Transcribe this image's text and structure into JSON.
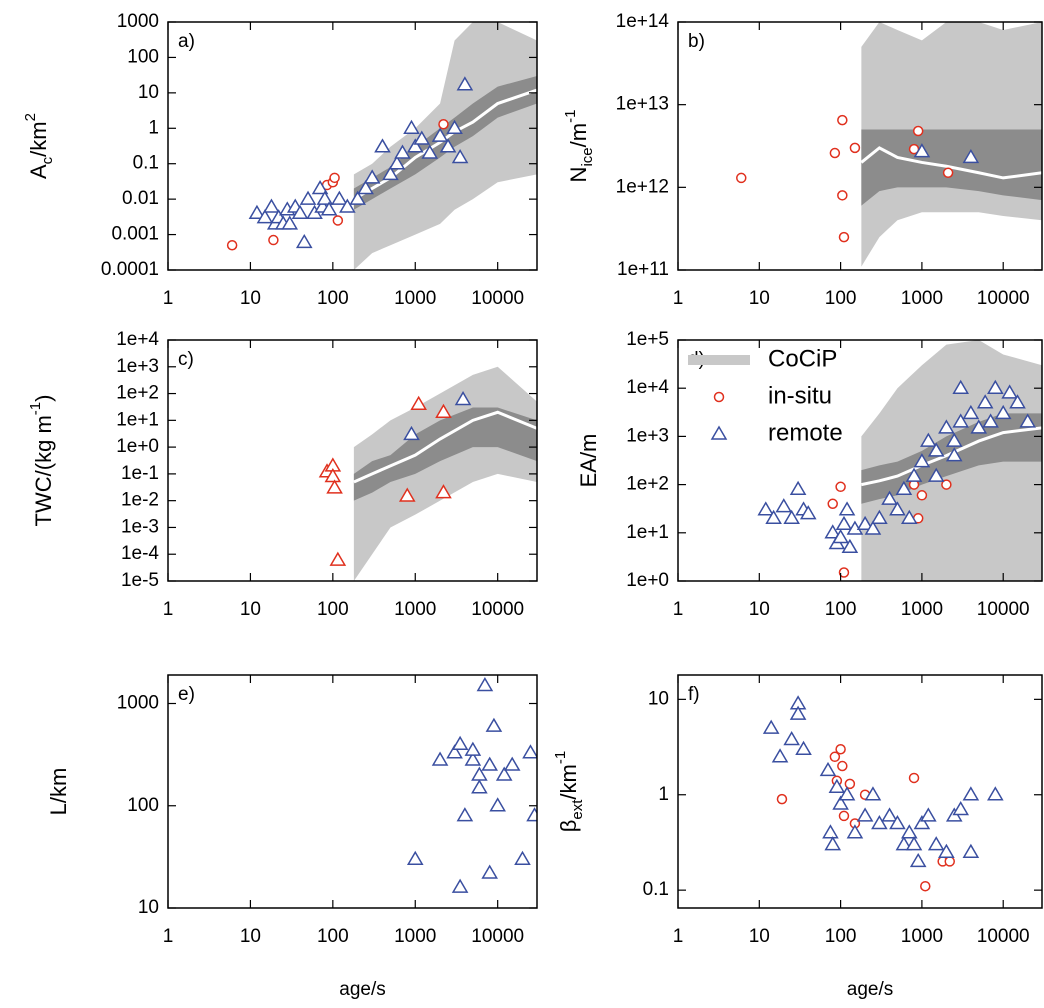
{
  "chart_data": [
    {
      "type": "scatter",
      "label": "a)",
      "xscale": "log",
      "yscale": "log",
      "ylabel": [
        {
          "text": "A",
          "pos": "base"
        },
        {
          "text": "c",
          "pos": "sub"
        },
        {
          "text": "/km",
          "pos": "base"
        },
        {
          "text": "2",
          "pos": "sup"
        }
      ],
      "xlim": [
        1,
        30000
      ],
      "xticks": [
        1,
        10,
        100,
        1000,
        10000
      ],
      "ylim": [
        0.0001,
        1000
      ],
      "yticks": [
        0.0001,
        0.001,
        0.01,
        0.1,
        1,
        10,
        100,
        1000
      ],
      "band": {
        "color": "#c8c8c8",
        "inner_color": "#8c8c8c",
        "median_color": "#ffffff",
        "x": [
          180,
          300,
          500,
          1000,
          2000,
          3000,
          5000,
          10000,
          30000
        ],
        "min": [
          0.0001,
          0.0003,
          0.0005,
          0.001,
          0.002,
          0.005,
          0.01,
          0.03,
          0.05
        ],
        "max": [
          0.05,
          0.1,
          0.3,
          1,
          5,
          300,
          1000,
          1000,
          300
        ],
        "q25": [
          0.005,
          0.01,
          0.02,
          0.05,
          0.15,
          0.3,
          0.6,
          2,
          5
        ],
        "q75": [
          0.02,
          0.04,
          0.08,
          0.3,
          1,
          2,
          5,
          15,
          30
        ],
        "median": [
          0.01,
          0.02,
          0.04,
          0.15,
          0.4,
          0.8,
          1.5,
          5,
          12
        ]
      },
      "series": [
        {
          "color": "#e0301e",
          "marker": "circle",
          "x": [
            6,
            19,
            85,
            100,
            105,
            115,
            2200
          ],
          "values": [
            0.0005,
            0.0007,
            0.025,
            0.03,
            0.04,
            0.0025,
            1.3
          ]
        },
        {
          "color": "#3a4fa0",
          "marker": "triangle",
          "x": [
            12,
            15,
            18,
            20,
            22,
            25,
            28,
            30,
            35,
            40,
            45,
            50,
            60,
            70,
            75,
            80,
            90,
            120,
            150,
            200,
            250,
            300,
            400,
            500,
            600,
            700,
            900,
            1000,
            1200,
            1500,
            2000,
            2500,
            3000,
            3500,
            4000
          ],
          "values": [
            0.004,
            0.003,
            0.006,
            0.002,
            0.003,
            0.002,
            0.005,
            0.002,
            0.006,
            0.004,
            0.0006,
            0.01,
            0.004,
            0.02,
            0.006,
            0.01,
            0.005,
            0.01,
            0.006,
            0.01,
            0.02,
            0.04,
            0.3,
            0.05,
            0.1,
            0.2,
            1,
            0.3,
            0.5,
            0.2,
            0.6,
            0.3,
            1,
            0.15,
            17
          ]
        }
      ]
    },
    {
      "type": "scatter",
      "label": "b)",
      "xscale": "log",
      "yscale": "log",
      "ylabel": [
        {
          "text": "N",
          "pos": "base"
        },
        {
          "text": "ice",
          "pos": "sub"
        },
        {
          "text": "/m",
          "pos": "base"
        },
        {
          "text": "-1",
          "pos": "sup"
        }
      ],
      "xlim": [
        1,
        30000
      ],
      "xticks": [
        1,
        10,
        100,
        1000,
        10000
      ],
      "ylim": [
        100000000000.0,
        100000000000000.0
      ],
      "yticks": [
        {
          "value": 100000000000.0,
          "label": "1e+11"
        },
        {
          "value": 1000000000000.0,
          "label": "1e+12"
        },
        {
          "value": 10000000000000.0,
          "label": "1e+13"
        },
        {
          "value": 100000000000000.0,
          "label": "1e+14"
        }
      ],
      "band": {
        "color": "#c8c8c8",
        "inner_color": "#8c8c8c",
        "median_color": "#ffffff",
        "x": [
          180,
          300,
          500,
          1000,
          2000,
          5000,
          10000,
          30000
        ],
        "min": [
          110000000000.0,
          250000000000.0,
          400000000000.0,
          500000000000.0,
          500000000000.0,
          500000000000.0,
          450000000000.0,
          400000000000.0
        ],
        "max": [
          50000000000000.0,
          100000000000000.0,
          80000000000000.0,
          60000000000000.0,
          100000000000000.0,
          100000000000000.0,
          80000000000000.0,
          100000000000000.0
        ],
        "q25": [
          600000000000.0,
          900000000000.0,
          1000000000000.0,
          1000000000000.0,
          1000000000000.0,
          900000000000.0,
          800000000000.0,
          700000000000.0
        ],
        "q75": [
          5000000000000.0,
          5000000000000.0,
          5000000000000.0,
          5000000000000.0,
          5000000000000.0,
          5000000000000.0,
          5000000000000.0,
          5000000000000.0
        ],
        "median": [
          2000000000000.0,
          3000000000000.0,
          2300000000000.0,
          2000000000000.0,
          1800000000000.0,
          1500000000000.0,
          1300000000000.0,
          1500000000000.0
        ]
      },
      "series": [
        {
          "color": "#e0301e",
          "marker": "circle",
          "x": [
            6,
            85,
            105,
            105,
            110,
            150,
            800,
            900,
            2100
          ],
          "values": [
            1300000000000.0,
            2600000000000.0,
            6500000000000.0,
            800000000000.0,
            250000000000.0,
            3000000000000.0,
            2900000000000.0,
            4800000000000.0,
            1500000000000.0
          ]
        },
        {
          "color": "#3a4fa0",
          "marker": "triangle",
          "x": [
            1000,
            4000
          ],
          "values": [
            2700000000000.0,
            2300000000000.0
          ]
        }
      ]
    },
    {
      "type": "scatter",
      "label": "c)",
      "xscale": "log",
      "yscale": "log",
      "ylabel": [
        {
          "text": "TWC/(kg m",
          "pos": "base"
        },
        {
          "text": "-1",
          "pos": "sup"
        },
        {
          "text": ")",
          "pos": "base"
        }
      ],
      "xlim": [
        1,
        30000
      ],
      "xticks": [
        1,
        10,
        100,
        1000,
        10000
      ],
      "ylim": [
        1e-05,
        10000.0
      ],
      "yticks": [
        {
          "value": 1e-05,
          "label": "1e-5"
        },
        {
          "value": 0.0001,
          "label": "1e-4"
        },
        {
          "value": 0.001,
          "label": "1e-3"
        },
        {
          "value": 0.01,
          "label": "1e-2"
        },
        {
          "value": 0.1,
          "label": "1e-1"
        },
        {
          "value": 1,
          "label": "1e+0"
        },
        {
          "value": 10,
          "label": "1e+1"
        },
        {
          "value": 100,
          "label": "1e+2"
        },
        {
          "value": 1000,
          "label": "1e+3"
        },
        {
          "value": 10000,
          "label": "1e+4"
        }
      ],
      "band": {
        "color": "#c8c8c8",
        "inner_color": "#8c8c8c",
        "median_color": "#ffffff",
        "x": [
          180,
          300,
          500,
          1000,
          2000,
          5000,
          10000,
          30000
        ],
        "min": [
          1e-05,
          0.0001,
          0.001,
          0.003,
          0.01,
          0.05,
          0.1,
          0.05
        ],
        "max": [
          1,
          3,
          10,
          30,
          100,
          500,
          1000,
          50
        ],
        "q25": [
          0.01,
          0.02,
          0.05,
          0.1,
          0.3,
          1,
          1,
          0.3
        ],
        "q75": [
          0.1,
          0.3,
          0.5,
          3,
          10,
          30,
          30,
          10
        ],
        "median": [
          0.05,
          0.1,
          0.2,
          0.5,
          2,
          10,
          20,
          5
        ]
      },
      "series": [
        {
          "color": "#e0301e",
          "marker": "triangle",
          "x": [
            85,
            100,
            100,
            105,
            115,
            800,
            1100,
            2200,
            2200
          ],
          "values": [
            0.12,
            0.2,
            0.08,
            0.03,
            6e-05,
            0.015,
            40,
            20,
            0.02
          ]
        },
        {
          "color": "#3a4fa0",
          "marker": "triangle",
          "x": [
            900,
            3800
          ],
          "values": [
            3,
            60
          ]
        }
      ]
    },
    {
      "type": "scatter",
      "label": "d)",
      "xscale": "log",
      "yscale": "log",
      "legend": "upper left",
      "ylabel": [
        {
          "text": "EA/m",
          "pos": "base"
        }
      ],
      "xlim": [
        1,
        30000
      ],
      "xticks": [
        1,
        10,
        100,
        1000,
        10000
      ],
      "ylim": [
        1,
        100000
      ],
      "yticks": [
        {
          "value": 1,
          "label": "1e+0"
        },
        {
          "value": 10,
          "label": "1e+1"
        },
        {
          "value": 100,
          "label": "1e+2"
        },
        {
          "value": 1000,
          "label": "1e+3"
        },
        {
          "value": 10000,
          "label": "1e+4"
        },
        {
          "value": 100000,
          "label": "1e+5"
        }
      ],
      "band": {
        "name": "CoCiP",
        "color": "#c8c8c8",
        "inner_color": "#8c8c8c",
        "median_color": "#ffffff",
        "x": [
          180,
          300,
          500,
          1000,
          2000,
          5000,
          10000,
          30000
        ],
        "min": [
          1,
          1,
          1,
          1,
          1,
          1,
          1,
          1
        ],
        "max": [
          1000,
          3000,
          10000,
          30000,
          80000,
          100000,
          50000,
          30000
        ],
        "q25": [
          40,
          50,
          60,
          100,
          150,
          250,
          300,
          300
        ],
        "q75": [
          200,
          250,
          300,
          500,
          1000,
          2000,
          3000,
          3000
        ],
        "median": [
          100,
          120,
          150,
          250,
          400,
          800,
          1200,
          1500
        ]
      },
      "series": [
        {
          "name": "in-situ",
          "color": "#e0301e",
          "marker": "circle",
          "x": [
            80,
            100,
            110,
            800,
            900,
            1000,
            2000
          ],
          "values": [
            40,
            90,
            1.5,
            100,
            20,
            60,
            100
          ]
        },
        {
          "name": "remote",
          "color": "#3a4fa0",
          "marker": "triangle",
          "x": [
            12,
            15,
            20,
            25,
            30,
            35,
            40,
            80,
            90,
            100,
            110,
            120,
            130,
            150,
            200,
            250,
            300,
            400,
            500,
            600,
            700,
            800,
            1000,
            1200,
            1500,
            2000,
            2500,
            3000,
            4000,
            5000,
            6000,
            7000,
            8000,
            10000,
            12000,
            15000,
            20000,
            3000,
            2500,
            1500
          ],
          "values": [
            30,
            20,
            35,
            20,
            80,
            30,
            25,
            10,
            6,
            8,
            15,
            30,
            5,
            12,
            15,
            12,
            20,
            50,
            30,
            80,
            20,
            150,
            300,
            800,
            500,
            1500,
            800,
            2000,
            3000,
            1500,
            5000,
            2000,
            10000,
            3000,
            8000,
            5000,
            2000,
            10000,
            400,
            150
          ]
        }
      ]
    },
    {
      "type": "scatter",
      "label": "e)",
      "xscale": "log",
      "yscale": "log",
      "xlabel": "age/s",
      "ylabel": [
        {
          "text": "L/km",
          "pos": "base"
        }
      ],
      "xlim": [
        1,
        30000
      ],
      "xticks": [
        1,
        10,
        100,
        1000,
        10000
      ],
      "ylim": [
        10,
        1900
      ],
      "yticks": [
        10,
        100,
        1000
      ],
      "series": [
        {
          "color": "#3a4fa0",
          "marker": "triangle",
          "x": [
            1000,
            2000,
            3000,
            3500,
            4000,
            3500,
            5000,
            6000,
            7000,
            8000,
            8000,
            9000,
            10000,
            12000,
            15000,
            20000,
            25000,
            28000,
            6000,
            5000
          ],
          "values": [
            30,
            280,
            330,
            400,
            80,
            16,
            280,
            200,
            1500,
            250,
            22,
            600,
            100,
            200,
            250,
            30,
            330,
            80,
            150,
            350
          ]
        }
      ]
    },
    {
      "type": "scatter",
      "label": "f)",
      "xscale": "log",
      "yscale": "log",
      "xlabel": "age/s",
      "ylabel": [
        {
          "text": "β",
          "pos": "base"
        },
        {
          "text": "ext",
          "pos": "sub"
        },
        {
          "text": "/km",
          "pos": "base"
        },
        {
          "text": "-1",
          "pos": "sup"
        }
      ],
      "xlim": [
        1,
        30000
      ],
      "xticks": [
        1,
        10,
        100,
        1000,
        10000
      ],
      "ylim": [
        0.065,
        18
      ],
      "yticks": [
        0.1,
        1,
        10
      ],
      "series": [
        {
          "color": "#e0301e",
          "marker": "circle",
          "x": [
            19,
            85,
            90,
            100,
            105,
            110,
            130,
            150,
            200,
            800,
            1100,
            1800,
            2200
          ],
          "values": [
            0.9,
            2.5,
            1.4,
            3,
            2,
            0.6,
            1.3,
            0.5,
            1,
            1.5,
            0.11,
            0.2,
            0.2
          ]
        },
        {
          "color": "#3a4fa0",
          "marker": "triangle",
          "x": [
            14,
            18,
            25,
            30,
            30,
            35,
            70,
            75,
            80,
            90,
            100,
            120,
            150,
            200,
            250,
            300,
            400,
            500,
            600,
            700,
            800,
            900,
            1000,
            1200,
            1500,
            2000,
            2500,
            3000,
            4000,
            4000,
            8000
          ],
          "values": [
            5,
            2.5,
            3.8,
            9,
            7,
            3,
            1.8,
            0.4,
            0.3,
            1.2,
            0.8,
            1,
            0.4,
            0.6,
            1,
            0.5,
            0.6,
            0.5,
            0.3,
            0.4,
            0.3,
            0.2,
            0.5,
            0.6,
            0.3,
            0.25,
            0.6,
            0.7,
            0.25,
            1,
            1
          ]
        }
      ]
    }
  ]
}
